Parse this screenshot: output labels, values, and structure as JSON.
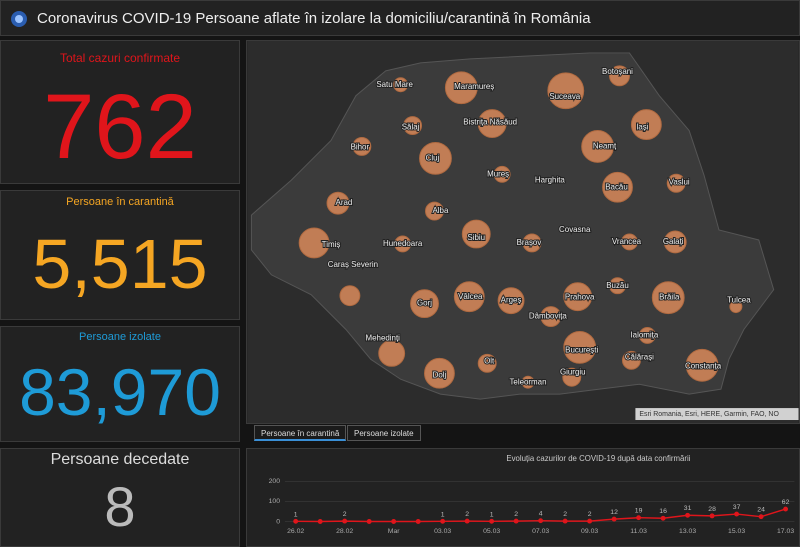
{
  "header": {
    "title": "Coronavirus COVID-19 Persoane aflate în izolare la domiciliu/carantină în România"
  },
  "cards": [
    {
      "label": "Total cazuri confirmate",
      "value": "762"
    },
    {
      "label": "Persoane în carantină",
      "value": "5,515"
    },
    {
      "label": "Persoane izolate",
      "value": "83,970"
    },
    {
      "label": "Persoane decedate",
      "value": "8"
    }
  ],
  "map": {
    "labels": [
      "Satu Mare",
      "Maramureș",
      "Suceava",
      "Botoșani",
      "Sălaj",
      "Bistrița Năsăud",
      "Bihor",
      "Cluj",
      "Iași",
      "Neamț",
      "Mureș",
      "Harghita",
      "Vaslui",
      "Bacău",
      "Arad",
      "Alba",
      "Timiș",
      "Hunedoara",
      "Sibiu",
      "Brașov",
      "Covasna",
      "Vrancea",
      "Galați",
      "Caraș Severin",
      "Buzău",
      "Prahova",
      "Argeș",
      "Vâlcea",
      "Gorj",
      "Brăila",
      "Tulcea",
      "Dâmbovița",
      "Mehedinți",
      "Ialomița",
      "București",
      "Călărași",
      "Olt",
      "Dolj",
      "Constanța",
      "Giurgiu",
      "Teleorman"
    ],
    "attribution": "Esri Romania, Esri, HERE, Garmin, FAO, NO"
  },
  "tabs": [
    "Persoane în carantină",
    "Persoane izolate"
  ],
  "chart_data": {
    "type": "line",
    "title": "Evoluția cazurilor de COVID-19 după data confirmării",
    "categories": [
      "26.02",
      null,
      "28.02",
      null,
      "Mar",
      null,
      "03.03",
      null,
      "05.03",
      null,
      "07.03",
      null,
      "09.03",
      null,
      "11.03",
      null,
      "13.03",
      null,
      "15.03",
      null,
      "17.03"
    ],
    "series": [
      {
        "color": "#e0151b",
        "values": [
          1,
          0,
          2,
          0,
          0,
          0,
          1,
          2,
          1,
          2,
          4,
          2,
          2,
          12,
          19,
          16,
          31,
          28,
          37,
          24,
          62
        ]
      }
    ],
    "ylim": [
      0,
      200
    ],
    "yticks": [
      0,
      100,
      200
    ],
    "grid": true
  }
}
